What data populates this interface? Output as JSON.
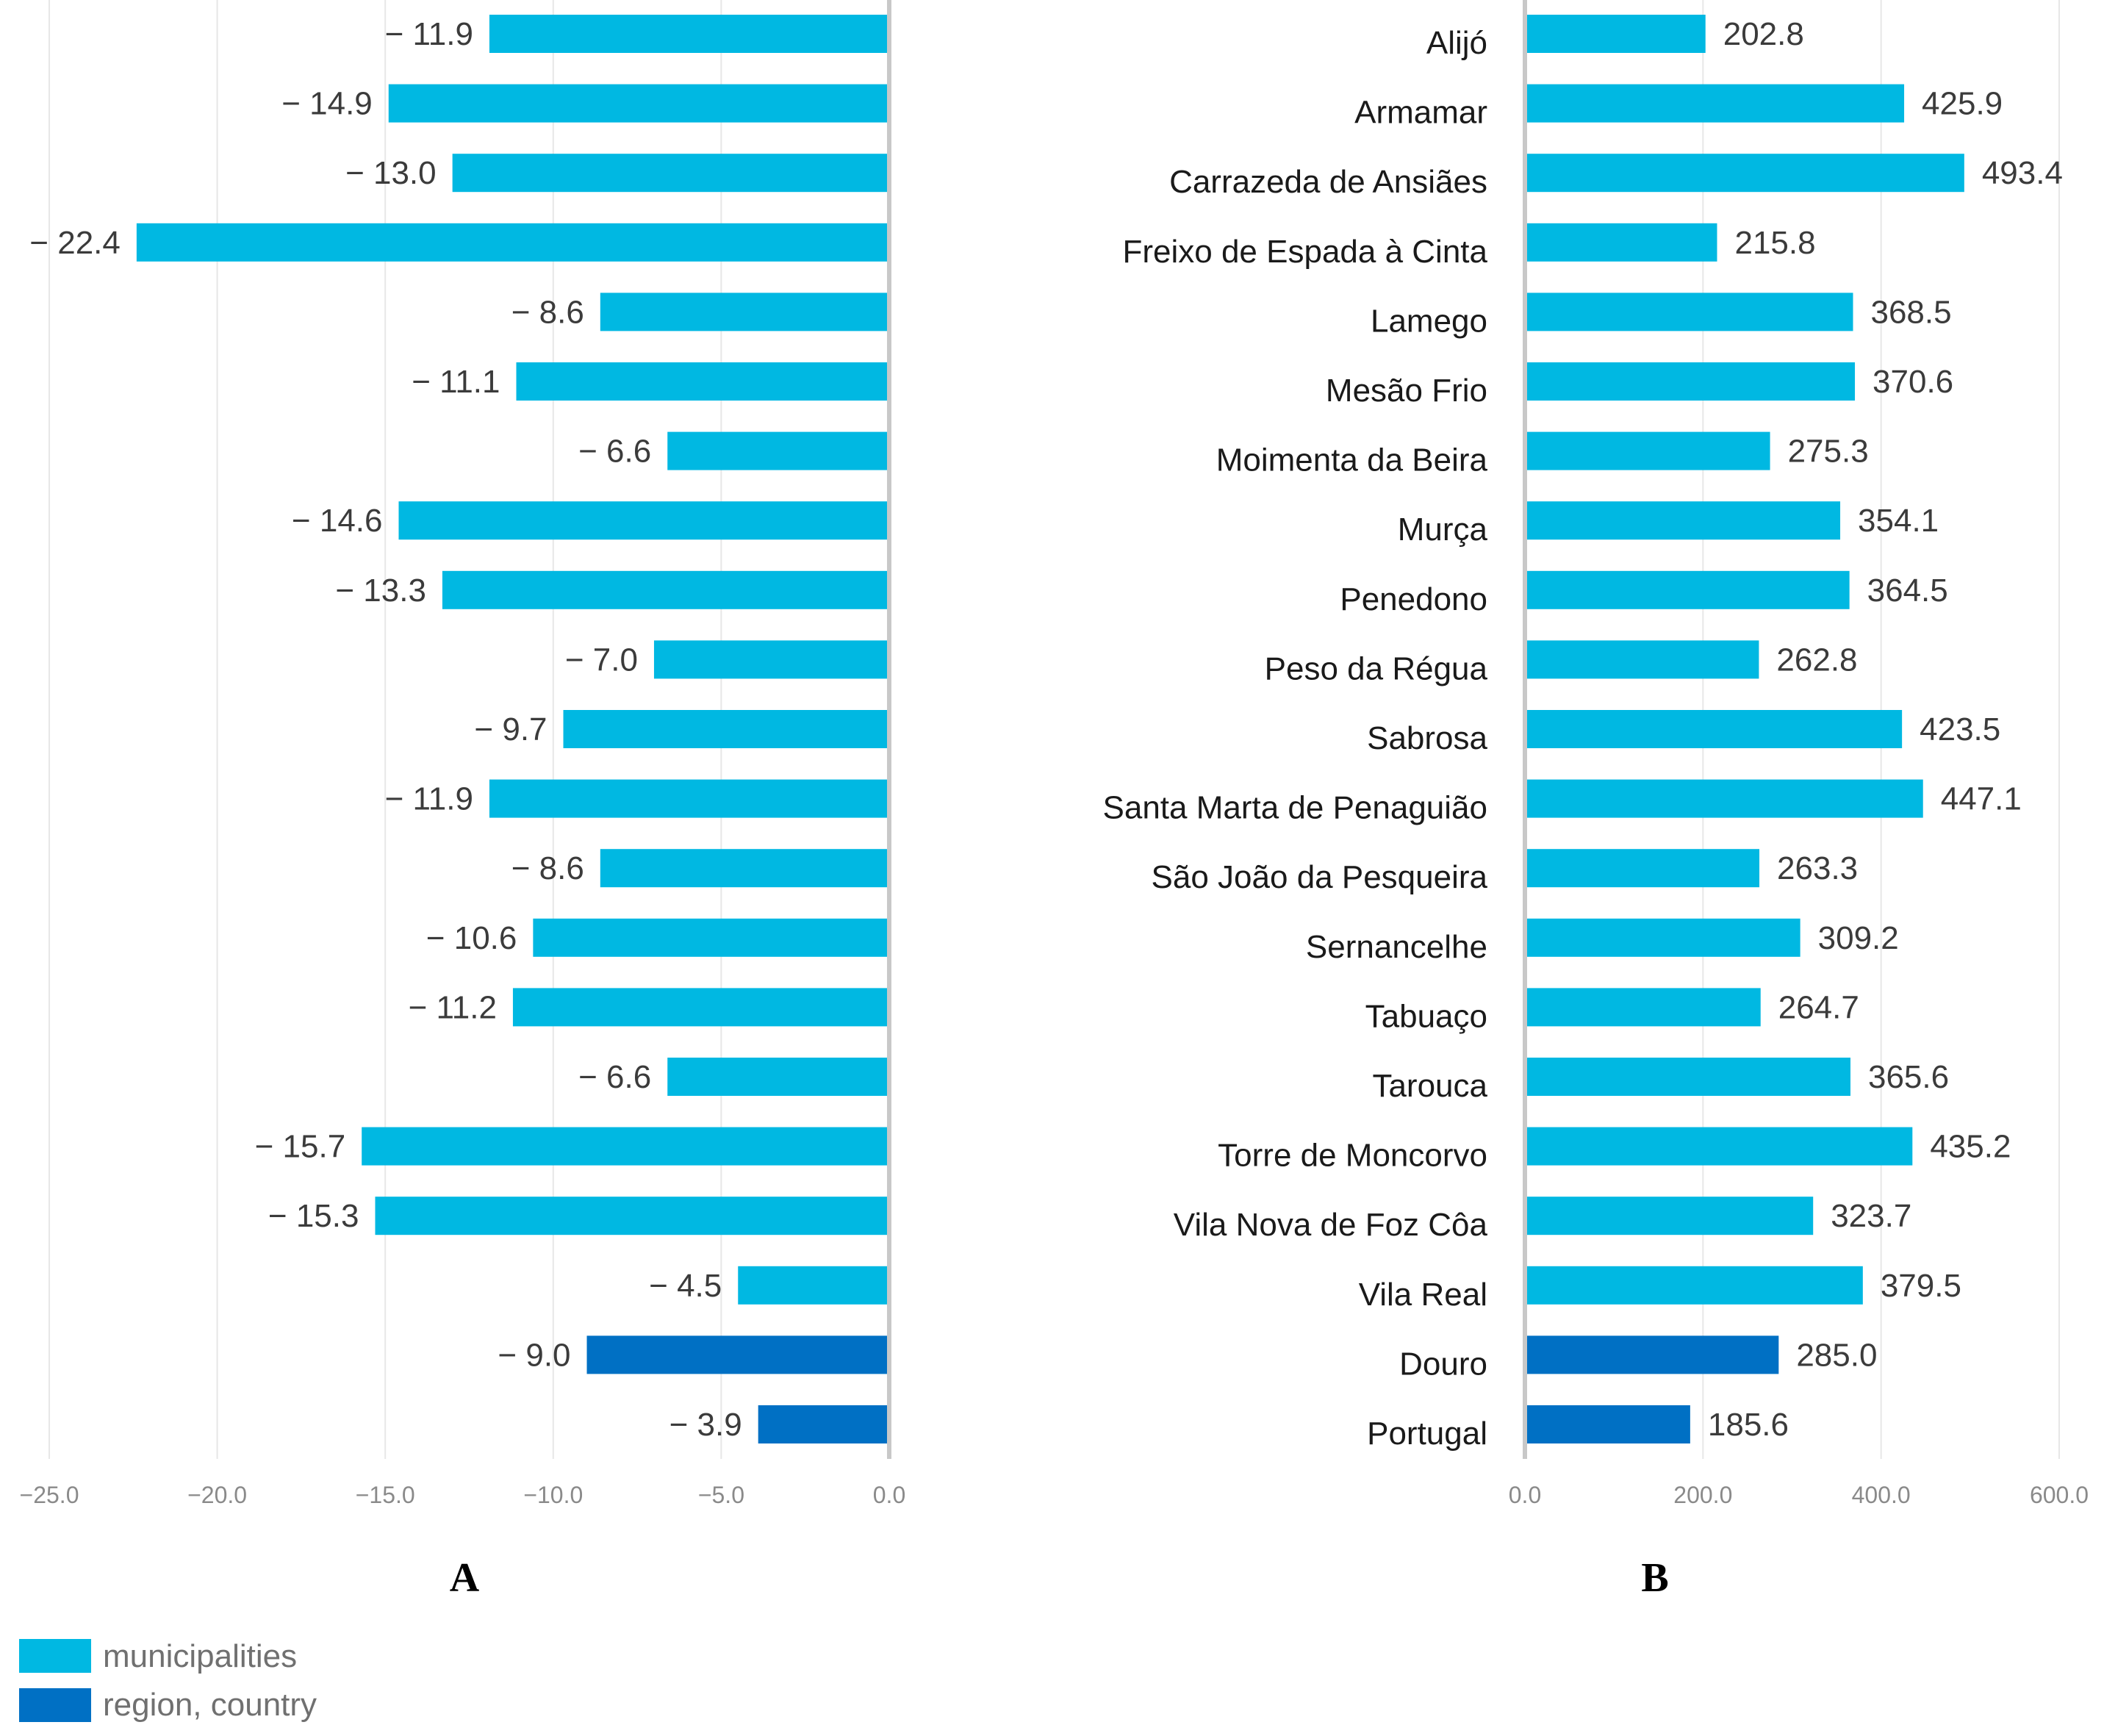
{
  "colors": {
    "municipalities": "#00B8E2",
    "region_country": "#0070C4"
  },
  "legend": {
    "municipalities_label": "municipalities",
    "region_country_label": "region, country"
  },
  "chart_data": [
    {
      "panel": "A",
      "type": "bar",
      "orientation": "horizontal",
      "categories": [
        "Alijó",
        "Armamar",
        "Carrazeda de Ansiães",
        "Freixo de Espada à Cinta",
        "Lamego",
        "Mesão Frio",
        "Moimenta da Beira",
        "Murça",
        "Penedono",
        "Peso da Régua",
        "Sabrosa",
        "Santa Marta de Penaguião",
        "São João da Pesqueira",
        "Sernancelhe",
        "Tabuaço",
        "Tarouca",
        "Torre de Moncorvo",
        "Vila Nova de Foz Côa",
        "Vila Real",
        "Douro",
        "Portugal"
      ],
      "values": [
        -11.9,
        -14.9,
        -13.0,
        -22.4,
        -8.6,
        -11.1,
        -6.6,
        -14.6,
        -13.3,
        -7.0,
        -9.7,
        -11.9,
        -8.6,
        -10.6,
        -11.2,
        -6.6,
        -15.7,
        -15.3,
        -4.5,
        -9.0,
        -3.9
      ],
      "value_labels": [
        "− 11.9",
        "− 14.9",
        "− 13.0",
        "− 22.4",
        "− 8.6",
        "− 11.1",
        "− 6.6",
        "− 14.6",
        "− 13.3",
        "− 7.0",
        "− 9.7",
        "− 11.9",
        "− 8.6",
        "− 10.6",
        "− 11.2",
        "− 6.6",
        "− 15.7",
        "− 15.3",
        "− 4.5",
        "− 9.0",
        "− 3.9"
      ],
      "groups": [
        "municipalities",
        "municipalities",
        "municipalities",
        "municipalities",
        "municipalities",
        "municipalities",
        "municipalities",
        "municipalities",
        "municipalities",
        "municipalities",
        "municipalities",
        "municipalities",
        "municipalities",
        "municipalities",
        "municipalities",
        "municipalities",
        "municipalities",
        "municipalities",
        "municipalities",
        "region_country",
        "region_country"
      ],
      "xlim": [
        -25,
        0
      ],
      "xticks": [
        -25,
        -20,
        -15,
        -10,
        -5,
        0
      ],
      "xtick_labels": [
        "−25.0",
        "−20.0",
        "−15.0",
        "−10.0",
        "−5.0",
        "0.0"
      ],
      "title": "A",
      "grid": true
    },
    {
      "panel": "B",
      "type": "bar",
      "orientation": "horizontal",
      "categories": [
        "Alijó",
        "Armamar",
        "Carrazeda de Ansiães",
        "Freixo de Espada à Cinta",
        "Lamego",
        "Mesão Frio",
        "Moimenta da Beira",
        "Murça",
        "Penedono",
        "Peso da Régua",
        "Sabrosa",
        "Santa Marta de Penaguião",
        "São João da Pesqueira",
        "Sernancelhe",
        "Tabuaço",
        "Tarouca",
        "Torre de Moncorvo",
        "Vila Nova de Foz Côa",
        "Vila Real",
        "Douro",
        "Portugal"
      ],
      "values": [
        202.8,
        425.9,
        493.4,
        215.8,
        368.5,
        370.6,
        275.3,
        354.1,
        364.5,
        262.8,
        423.5,
        447.1,
        263.3,
        309.2,
        264.7,
        365.6,
        435.2,
        323.7,
        379.5,
        285.0,
        185.6
      ],
      "value_labels": [
        "202.8",
        "425.9",
        "493.4",
        "215.8",
        "368.5",
        "370.6",
        "275.3",
        "354.1",
        "364.5",
        "262.8",
        "423.5",
        "447.1",
        "263.3",
        "309.2",
        "264.7",
        "365.6",
        "435.2",
        "323.7",
        "379.5",
        "285.0",
        "185.6"
      ],
      "groups": [
        "municipalities",
        "municipalities",
        "municipalities",
        "municipalities",
        "municipalities",
        "municipalities",
        "municipalities",
        "municipalities",
        "municipalities",
        "municipalities",
        "municipalities",
        "municipalities",
        "municipalities",
        "municipalities",
        "municipalities",
        "municipalities",
        "municipalities",
        "municipalities",
        "municipalities",
        "region_country",
        "region_country"
      ],
      "xlim": [
        0,
        600
      ],
      "xticks": [
        0,
        200,
        400,
        600
      ],
      "xtick_labels": [
        "0.0",
        "200.0",
        "400.0",
        "600.0"
      ],
      "title": "B",
      "grid": true
    }
  ]
}
